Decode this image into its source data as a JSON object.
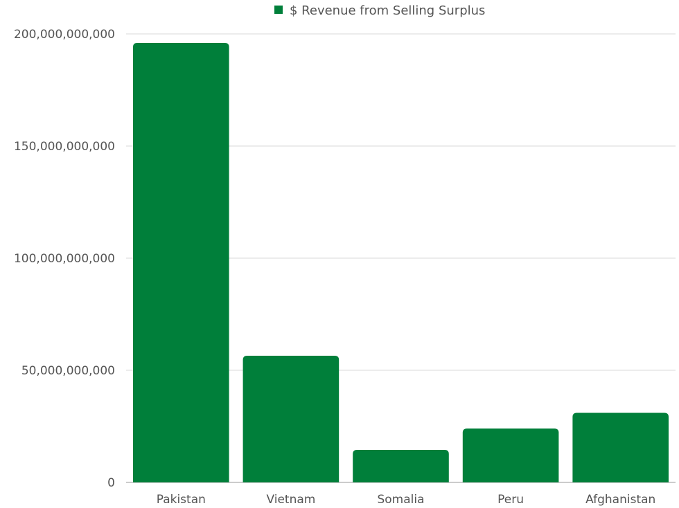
{
  "chart_data": {
    "type": "bar",
    "categories": [
      "Pakistan",
      "Vietnam",
      "Somalia",
      "Peru",
      "Afghanistan"
    ],
    "series": [
      {
        "name": "$ Revenue from Selling Surplus",
        "values": [
          196000000000,
          56500000000,
          14500000000,
          24000000000,
          31000000000
        ]
      }
    ],
    "y_ticks": [
      0,
      50000000000,
      100000000000,
      150000000000,
      200000000000
    ],
    "y_tick_labels": [
      "0",
      "50,000,000,000",
      "100,000,000,000",
      "150,000,000,000",
      "200,000,000,000"
    ],
    "ylim": [
      0,
      200000000000
    ],
    "grid": true,
    "legend_position": "top-center",
    "bar_color": "#007f3a"
  }
}
